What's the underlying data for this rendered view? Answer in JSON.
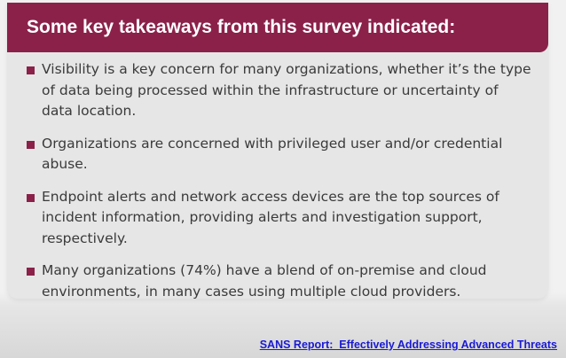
{
  "card": {
    "title": "Some key takeaways from this survey indicated:",
    "items": [
      {
        "text": "Visibility is a key concern for many organizations, whether it’s the type of data being processed within the infrastructure or uncertainty of data location."
      },
      {
        "text": "Organizations are concerned with privileged user and/or credential abuse."
      },
      {
        "text": "Endpoint alerts and network access devices are the top sources of incident information, providing alerts and investigation support, respectively."
      },
      {
        "text": "Many organizations (74%) have a blend of on-premise and cloud environments, in many cases using multiple cloud providers."
      }
    ]
  },
  "footer": {
    "link_text": "SANS Report:  Effectively Addressing Advanced Threats"
  },
  "colors": {
    "accent": "#8b2149",
    "link": "#1a1ad4",
    "card_bg": "#e6e6e6",
    "text": "#3a3a3a"
  }
}
